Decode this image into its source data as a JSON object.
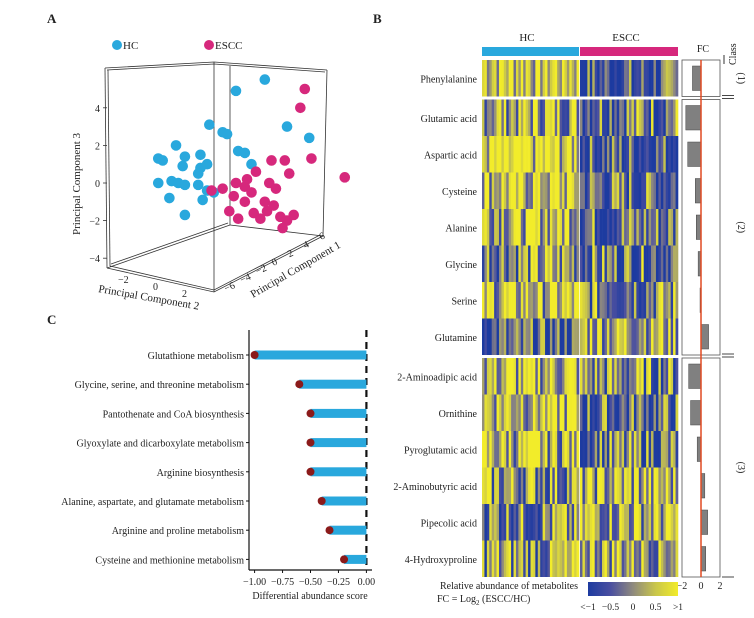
{
  "panels": {
    "a_label": "A",
    "b_label": "B",
    "c_label": "C"
  },
  "chart_data": [
    {
      "id": "pca3d",
      "type": "scatter",
      "title": "",
      "legend": [
        {
          "name": "HC",
          "color": "#29a8dd"
        },
        {
          "name": "ESCC",
          "color": "#d6287c"
        }
      ],
      "legend_position": "top",
      "xlabel": "Principal Component 2",
      "ylabel": "Principal Component 3",
      "zlabel": "Principal Component 1",
      "pc3_ticks": [
        "4",
        "2",
        "0",
        "−2",
        "−4"
      ],
      "pc2_ticks": [
        "−2",
        "0",
        "2"
      ],
      "pc1_ticks": [
        "−6",
        "−4",
        "−2",
        "0",
        "2",
        "4",
        "6"
      ],
      "pc3_range": [
        -4.5,
        5.5
      ],
      "projected_points": {
        "HC": [
          [
            0.72,
            5.5
          ],
          [
            0.59,
            4.9
          ],
          [
            0.82,
            3.0
          ],
          [
            0.92,
            2.4
          ],
          [
            0.47,
            3.1
          ],
          [
            0.53,
            2.7
          ],
          [
            0.55,
            2.6
          ],
          [
            0.32,
            2.0
          ],
          [
            0.24,
            1.3
          ],
          [
            0.26,
            1.2
          ],
          [
            0.36,
            1.4
          ],
          [
            0.43,
            1.5
          ],
          [
            0.35,
            0.9
          ],
          [
            0.43,
            0.8
          ],
          [
            0.46,
            1.0
          ],
          [
            0.42,
            0.5
          ],
          [
            0.6,
            1.7
          ],
          [
            0.63,
            1.6
          ],
          [
            0.66,
            1.0
          ],
          [
            0.24,
            0.0
          ],
          [
            0.3,
            0.1
          ],
          [
            0.33,
            0.0
          ],
          [
            0.36,
            -0.1
          ],
          [
            0.42,
            -0.1
          ],
          [
            0.46,
            -0.4
          ],
          [
            0.29,
            -0.8
          ],
          [
            0.44,
            -0.9
          ],
          [
            0.36,
            -1.7
          ],
          [
            0.49,
            -0.5
          ]
        ],
        "ESCC": [
          [
            0.9,
            5.0
          ],
          [
            0.88,
            4.0
          ],
          [
            0.93,
            1.3
          ],
          [
            1.08,
            0.3
          ],
          [
            0.75,
            1.2
          ],
          [
            0.81,
            1.2
          ],
          [
            0.83,
            0.5
          ],
          [
            0.68,
            0.6
          ],
          [
            0.64,
            0.2
          ],
          [
            0.59,
            0.0
          ],
          [
            0.63,
            -0.2
          ],
          [
            0.74,
            0.0
          ],
          [
            0.77,
            -0.3
          ],
          [
            0.53,
            -0.3
          ],
          [
            0.58,
            -0.7
          ],
          [
            0.63,
            -1.0
          ],
          [
            0.56,
            -1.5
          ],
          [
            0.6,
            -1.9
          ],
          [
            0.67,
            -1.6
          ],
          [
            0.7,
            -1.9
          ],
          [
            0.73,
            -1.5
          ],
          [
            0.76,
            -1.2
          ],
          [
            0.79,
            -1.8
          ],
          [
            0.82,
            -2.0
          ],
          [
            0.85,
            -1.7
          ],
          [
            0.8,
            -2.4
          ],
          [
            0.72,
            -1.0
          ],
          [
            0.66,
            -0.5
          ],
          [
            0.48,
            -0.4
          ]
        ]
      }
    },
    {
      "id": "heatmap",
      "type": "heatmap",
      "group_labels": [
        "HC",
        "ESCC"
      ],
      "group_colors": [
        "#29a8dd",
        "#d6287c"
      ],
      "columns_per_group": 40,
      "rows": [
        "Phenylalanine",
        "Glutamic acid",
        "Aspartic acid",
        "Cysteine",
        "Alanine",
        "Glycine",
        "Serine",
        "Glutamine",
        "2-Aminoadipic acid",
        "Ornithine",
        "Pyroglutamic acid",
        "2-Aminobutyric acid",
        "Pipecolic acid",
        "4-Hydroxyproline"
      ],
      "row_hc_bias": [
        0.75,
        0.35,
        0.65,
        0.55,
        0.55,
        0.1,
        0.45,
        -0.55,
        0.4,
        0.55,
        0.4,
        0.1,
        0.0,
        0.1
      ],
      "row_escc_bias": [
        -0.6,
        0.0,
        -0.5,
        -0.3,
        -0.2,
        -0.2,
        0.05,
        0.45,
        -0.05,
        -0.35,
        -0.25,
        0.3,
        0.35,
        0.4
      ],
      "classes": [
        {
          "label": "(1)",
          "rows": [
            0
          ]
        },
        {
          "label": "(2)",
          "rows": [
            1,
            2,
            3,
            4,
            5,
            6,
            7
          ]
        },
        {
          "label": "(3)",
          "rows": [
            8,
            9,
            10,
            11,
            12,
            13
          ]
        }
      ],
      "class_header": "Class",
      "fc_title": "FC",
      "fc_values": [
        -0.9,
        -1.6,
        -1.4,
        -0.6,
        -0.5,
        -0.3,
        -0.1,
        0.8,
        -1.3,
        -1.1,
        -0.4,
        0.4,
        0.7,
        0.5
      ],
      "fc_ticks": [
        "−2",
        "0",
        "2"
      ],
      "fc_range": [
        -2,
        2
      ],
      "colorscale": {
        "title": "Relative abundance of metabolites",
        "colors": [
          "#1d3ba0",
          "#4a4fa0",
          "#8f8a7e",
          "#c9c64a",
          "#f2ec2a"
        ],
        "ticks": [
          "<−1",
          "−0.5",
          "0",
          "0.5",
          ">1"
        ],
        "range": [
          -1,
          1
        ]
      },
      "fc_formula_prefix": "FC = Log",
      "fc_formula_sub": "2",
      "fc_formula_suffix": " (ESCC/HC)",
      "fc_line_color": "#e04a22",
      "fc_bar_color": "#808080"
    },
    {
      "id": "lollipop",
      "type": "bar",
      "categories": [
        "Glutathione metabolism",
        "Glycine, serine, and threonine metabolism",
        "Pantothenate and CoA biosynthesis",
        "Glyoxylate and dicarboxylate metabolism",
        "Arginine biosynthesis",
        "Alanine, aspartate, and glutamate metabolism",
        "Arginine and proline metabolism",
        "Cysteine and methionine metabolism"
      ],
      "values": [
        -1.0,
        -0.6,
        -0.5,
        -0.5,
        -0.5,
        -0.4,
        -0.33,
        -0.2
      ],
      "xlabel": "Differential abundance score",
      "ylabel": "",
      "xlim": [
        -1.05,
        0.05
      ],
      "xticks": [
        -1.0,
        -0.75,
        -0.5,
        -0.25,
        0.0
      ],
      "xtick_labels": [
        "−1.00",
        "−0.75",
        "−0.50",
        "−0.25",
        "0.00"
      ],
      "bar_color": "#29a8dd",
      "dot_color": "#8b1a1a",
      "reference_line": 0.0
    }
  ]
}
